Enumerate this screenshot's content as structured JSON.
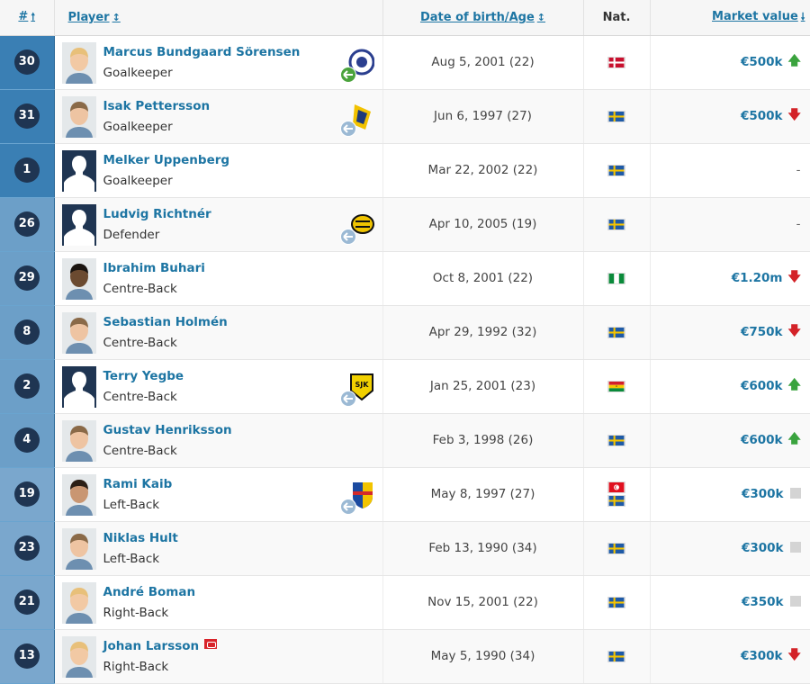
{
  "header": {
    "num": "#",
    "player": "Player",
    "dob": "Date of birth/Age",
    "nat": "Nat.",
    "mv": "Market value"
  },
  "players": [
    {
      "num": "30",
      "name": "Marcus Bundgaard Sörensen",
      "pos": "Goalkeeper",
      "dob": "Aug 5, 2001 (22)",
      "flags": [
        "denmark"
      ],
      "value": "€500k",
      "trend": "up",
      "photo": "blond",
      "club": "blue-ball",
      "loan": "green"
    },
    {
      "num": "31",
      "name": "Isak Pettersson",
      "pos": "Goalkeeper",
      "dob": "Jun 6, 1997 (27)",
      "flags": [
        "sweden"
      ],
      "value": "€500k",
      "trend": "down",
      "photo": "light",
      "club": "yellow-blue",
      "loan": "blue"
    },
    {
      "num": "1",
      "name": "Melker Uppenberg",
      "pos": "Goalkeeper",
      "dob": "Mar 22, 2002 (22)",
      "flags": [
        "sweden"
      ],
      "value": "-",
      "trend": "none",
      "photo": "silhouette",
      "club": "",
      "loan": ""
    },
    {
      "num": "26",
      "name": "Ludvig Richtnér",
      "pos": "Defender",
      "dob": "Apr 10, 2005 (19)",
      "flags": [
        "sweden"
      ],
      "value": "-",
      "trend": "none",
      "photo": "silhouette",
      "club": "yellow-black",
      "loan": "blue"
    },
    {
      "num": "29",
      "name": "Ibrahim Buhari",
      "pos": "Centre-Back",
      "dob": "Oct 8, 2001 (22)",
      "flags": [
        "nigeria"
      ],
      "value": "€1.20m",
      "trend": "down",
      "photo": "dark",
      "club": "",
      "loan": ""
    },
    {
      "num": "8",
      "name": "Sebastian Holmén",
      "pos": "Centre-Back",
      "dob": "Apr 29, 1992 (32)",
      "flags": [
        "sweden"
      ],
      "value": "€750k",
      "trend": "down",
      "photo": "light",
      "club": "",
      "loan": ""
    },
    {
      "num": "2",
      "name": "Terry Yegbe",
      "pos": "Centre-Back",
      "dob": "Jan 25, 2001 (23)",
      "flags": [
        "ghana"
      ],
      "value": "€600k",
      "trend": "up",
      "photo": "silhouette",
      "club": "sjk",
      "loan": "blue"
    },
    {
      "num": "4",
      "name": "Gustav Henriksson",
      "pos": "Centre-Back",
      "dob": "Feb 3, 1998 (26)",
      "flags": [
        "sweden"
      ],
      "value": "€600k",
      "trend": "up",
      "photo": "light",
      "club": "",
      "loan": ""
    },
    {
      "num": "19",
      "name": "Rami Kaib",
      "pos": "Left-Back",
      "dob": "May 8, 1997 (27)",
      "flags": [
        "tunisia",
        "sweden"
      ],
      "value": "€300k",
      "trend": "same",
      "photo": "tan",
      "club": "shield-blue-red",
      "loan": "blue"
    },
    {
      "num": "23",
      "name": "Niklas Hult",
      "pos": "Left-Back",
      "dob": "Feb 13, 1990 (34)",
      "flags": [
        "sweden"
      ],
      "value": "€300k",
      "trend": "same",
      "photo": "light",
      "club": "",
      "loan": ""
    },
    {
      "num": "21",
      "name": "André Boman",
      "pos": "Right-Back",
      "dob": "Nov 15, 2001 (22)",
      "flags": [
        "sweden"
      ],
      "value": "€350k",
      "trend": "same",
      "photo": "blond",
      "club": "",
      "loan": ""
    },
    {
      "num": "13",
      "name": "Johan Larsson",
      "pos": "Right-Back",
      "dob": "May 5, 1990 (34)",
      "flags": [
        "sweden"
      ],
      "value": "€300k",
      "trend": "down",
      "photo": "blond",
      "club": "",
      "loan": "",
      "captain": true
    }
  ]
}
